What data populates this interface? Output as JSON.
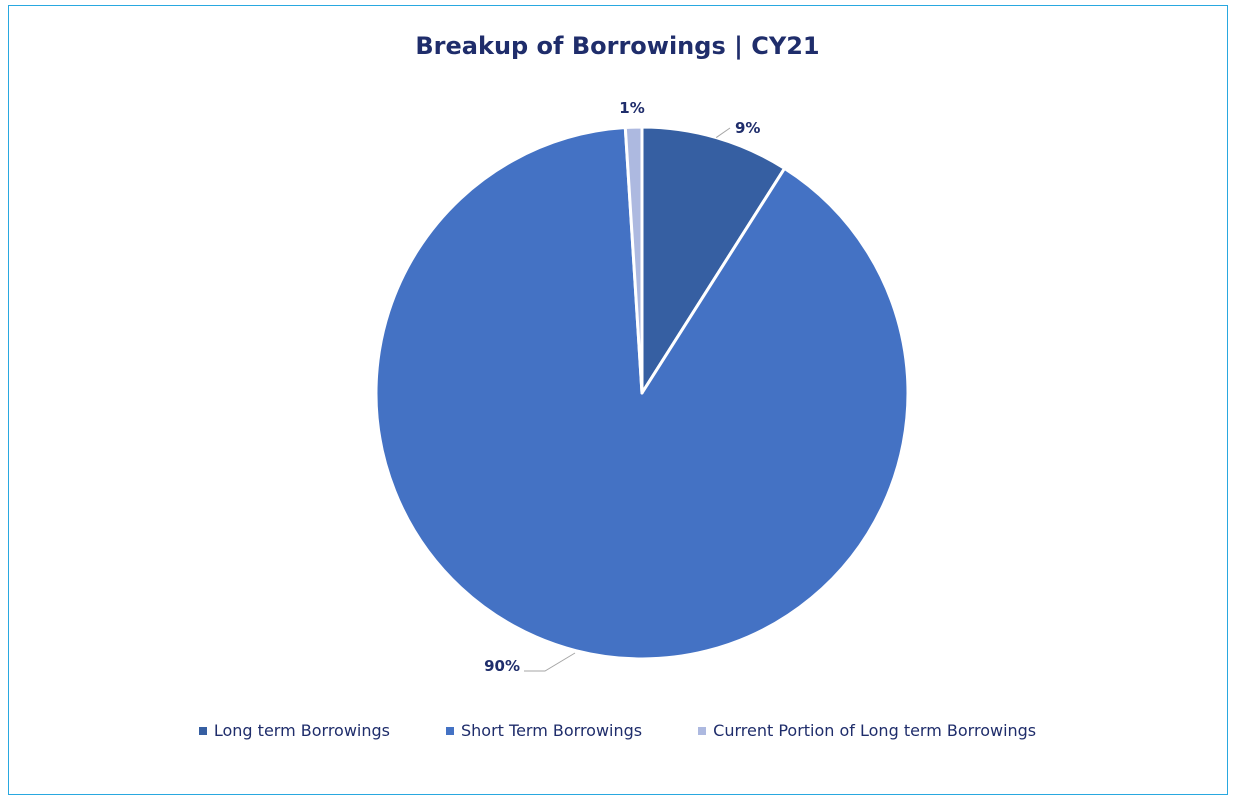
{
  "chart_data": {
    "type": "pie",
    "title": "Breakup of Borrowings | CY21",
    "categories": [
      "Long term Borrowings",
      "Short Term Borrowings",
      "Current Portion of Long term Borrowings"
    ],
    "values": [
      9,
      90,
      1
    ],
    "labels": [
      "9%",
      "90%",
      "1%"
    ],
    "colors": [
      "#365fa2",
      "#4472c4",
      "#adb9e0"
    ],
    "legend_position": "bottom"
  }
}
